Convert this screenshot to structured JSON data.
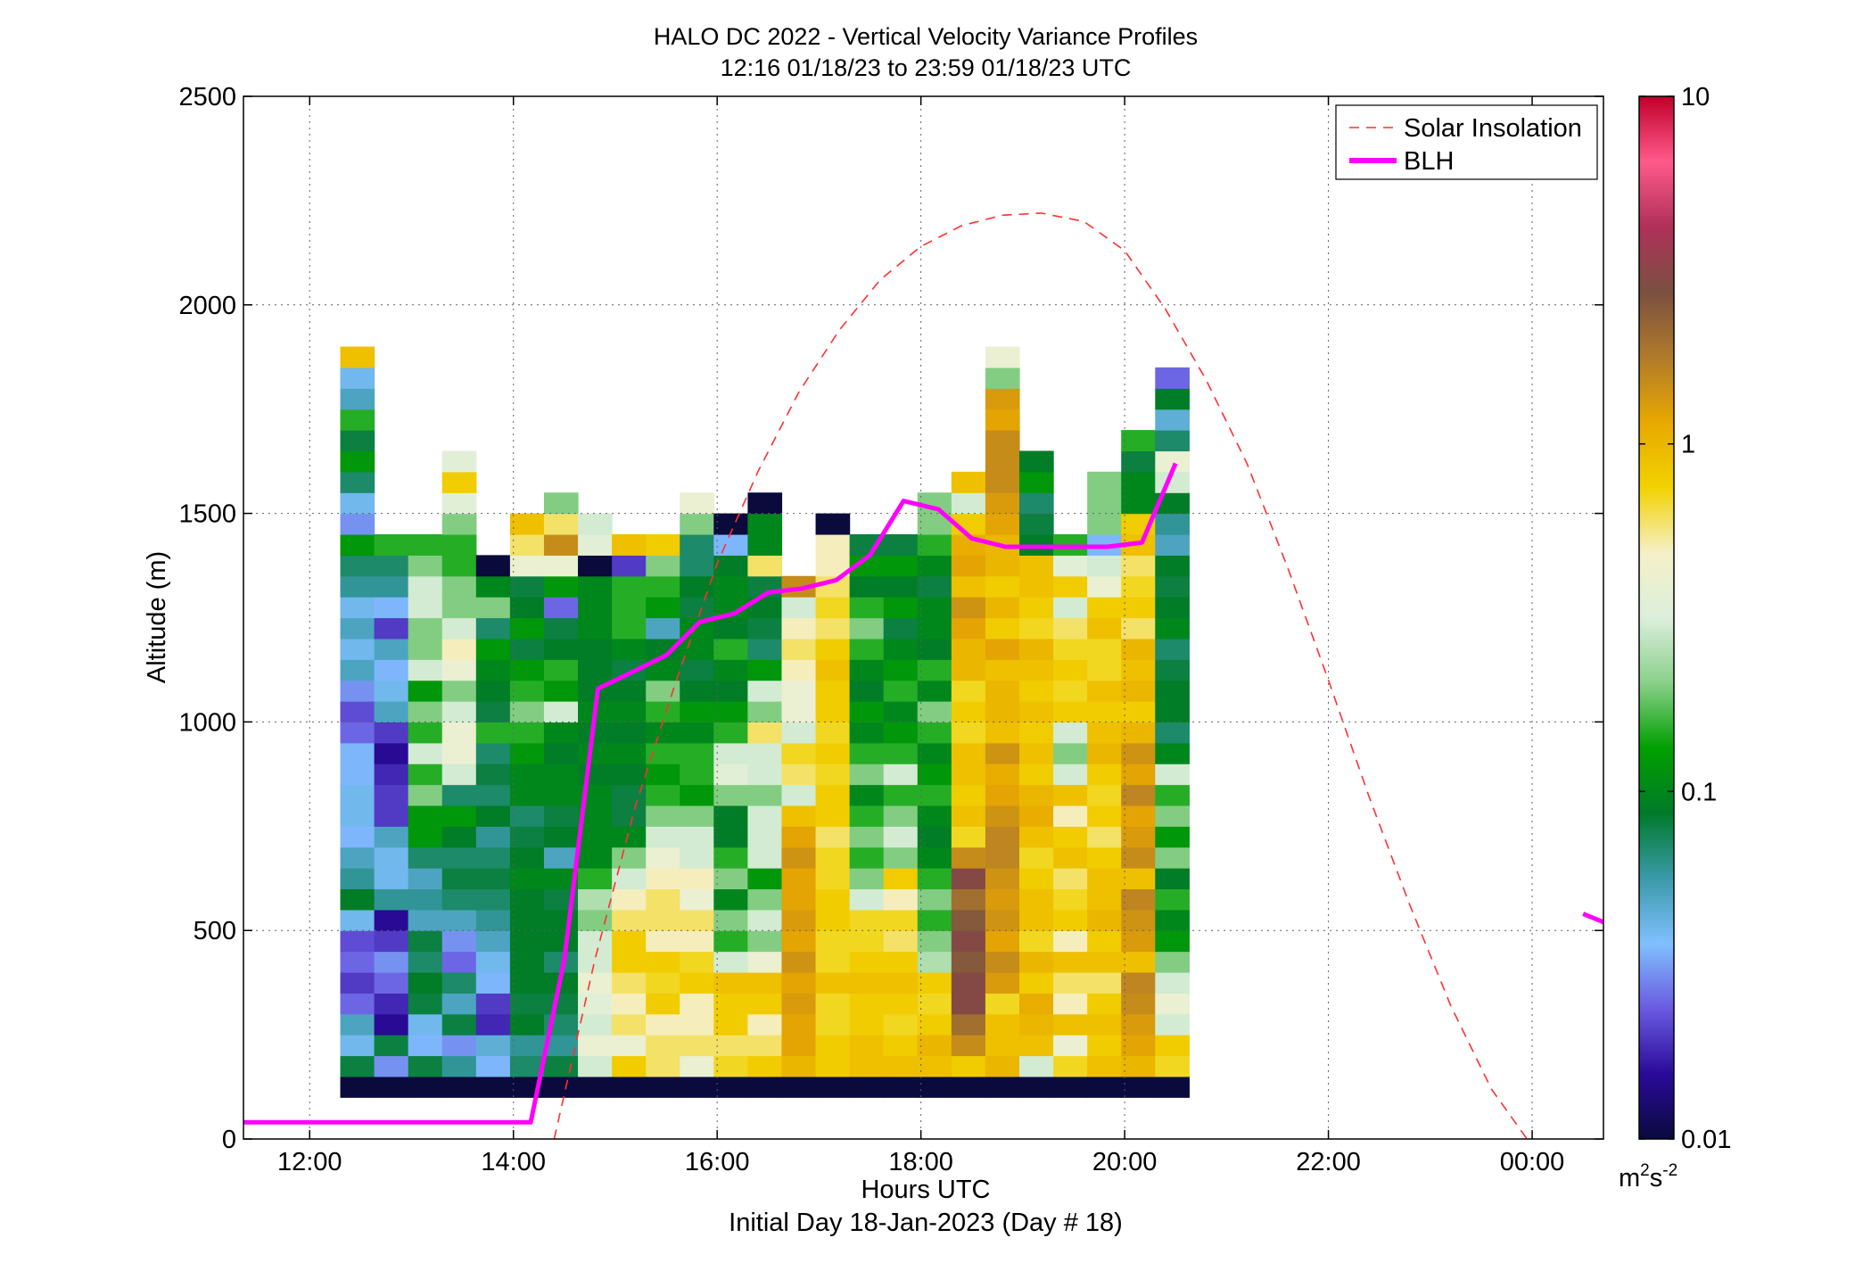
{
  "chart_data": {
    "type": "heatmap",
    "title": "HALO DC 2022 - Vertical Velocity Variance Profiles",
    "subtitle": "12:16 01/18/23 to 23:59 01/18/23  UTC",
    "xlabel": "Hours UTC",
    "xlabel2": "Initial Day 18-Jan-2023 (Day # 18)",
    "ylabel": "Altitude (m)",
    "x_unit": "hours UTC",
    "xlim": [
      11.35,
      24.7
    ],
    "ylim": [
      0,
      2500
    ],
    "x_ticks": [
      12,
      14,
      16,
      18,
      20,
      22,
      24
    ],
    "x_tick_labels": [
      "12:00",
      "14:00",
      "16:00",
      "18:00",
      "20:00",
      "22:00",
      "00:00"
    ],
    "y_ticks": [
      0,
      500,
      1000,
      1500,
      2000,
      2500
    ],
    "y_tick_labels": [
      "0",
      "500",
      "1000",
      "1500",
      "2000",
      "2500"
    ],
    "grid": true,
    "legend_position": "top-right",
    "colorbar": {
      "scale": "log",
      "range": [
        0.01,
        10
      ],
      "ticks": [
        0.01,
        0.1,
        1,
        10
      ],
      "tick_labels": [
        "0.01",
        "0.1",
        "1",
        "10"
      ],
      "unit_base": "m",
      "unit_exp1": "2",
      "unit_mid": "s",
      "unit_exp2": "-2",
      "colors": [
        "#0a0a3c",
        "#2a0a9a",
        "#6a5ae0",
        "#80c0ff",
        "#3a9aaa",
        "#007a2a",
        "#00a000",
        "#8ad08a",
        "#dcefdc",
        "#f5f0c8",
        "#f2d200",
        "#e8a800",
        "#b07a2a",
        "#7a5040",
        "#b0305a",
        "#ff5a8a",
        "#c0002a"
      ]
    },
    "heatmap": {
      "x_start": 12.3,
      "x_step": 0.3333,
      "y_start": 100,
      "y_step": 50,
      "columns": [
        [
          0.01,
          0.08,
          0.04,
          0.05,
          0.025,
          0.02,
          0.025,
          0.022,
          0.04,
          0.09,
          0.06,
          0.05,
          0.035,
          0.04,
          0.04,
          0.035,
          0.035,
          0.025,
          0.022,
          0.03,
          0.05,
          0.04,
          0.05,
          0.04,
          0.06,
          0.07,
          0.12,
          0.03,
          0.04,
          0.07,
          0.12,
          0.08,
          0.15,
          0.05,
          0.04,
          0.9
        ],
        [
          0.01,
          0.03,
          0.08,
          0.015,
          0.018,
          0.025,
          0.03,
          0.02,
          0.015,
          0.06,
          0.04,
          0.04,
          0.05,
          0.02,
          0.02,
          0.018,
          0.015,
          0.02,
          0.05,
          0.04,
          0.035,
          0.05,
          0.02,
          0.035,
          0.06,
          0.07,
          0.15
        ],
        [
          0.01,
          0.08,
          0.035,
          0.04,
          0.08,
          0.09,
          0.07,
          0.08,
          0.05,
          0.06,
          0.05,
          0.07,
          0.12,
          0.12,
          0.2,
          0.15,
          0.3,
          0.15,
          0.2,
          0.12,
          0.3,
          0.2,
          0.2,
          0.3,
          0.3,
          0.2,
          0.15
        ],
        [
          0.01,
          0.06,
          0.03,
          0.08,
          0.05,
          0.07,
          0.025,
          0.03,
          0.05,
          0.07,
          0.08,
          0.07,
          0.09,
          0.12,
          0.07,
          0.3,
          0.4,
          0.4,
          0.3,
          0.2,
          0.4,
          0.5,
          0.3,
          0.2,
          0.2,
          0.15,
          0.15,
          0.2,
          0.35,
          0.8,
          0.35
        ],
        [
          0.01,
          0.035,
          0.045,
          0.018,
          0.02,
          0.035,
          0.04,
          0.05,
          0.06,
          0.07,
          0.08,
          0.07,
          0.06,
          0.09,
          0.07,
          0.08,
          0.07,
          0.15,
          0.08,
          0.09,
          0.1,
          0.12,
          0.07,
          0.2,
          0.1,
          0.01
        ],
        [
          0.01,
          0.07,
          0.06,
          0.09,
          0.08,
          0.09,
          0.09,
          0.09,
          0.09,
          0.09,
          0.1,
          0.09,
          0.08,
          0.07,
          0.1,
          0.1,
          0.12,
          0.15,
          0.2,
          0.15,
          0.12,
          0.08,
          0.12,
          0.09,
          0.08,
          0.4,
          0.6,
          0.9
        ],
        [
          0.01,
          0.08,
          0.06,
          0.07,
          0.08,
          0.09,
          0.07,
          0.09,
          0.09,
          0.08,
          0.1,
          0.05,
          0.09,
          0.08,
          0.1,
          0.1,
          0.09,
          0.1,
          0.3,
          0.12,
          0.15,
          0.09,
          0.08,
          0.025,
          0.12,
          0.4,
          1.5,
          0.6,
          0.2
        ],
        [
          0.01,
          0.3,
          0.4,
          0.3,
          0.35,
          0.4,
          0.3,
          0.3,
          0.2,
          0.25,
          0.15,
          0.1,
          0.1,
          0.1,
          0.1,
          0.09,
          0.1,
          0.09,
          0.1,
          0.09,
          0.09,
          0.09,
          0.1,
          0.1,
          0.1,
          0.01,
          0.35,
          0.3
        ],
        [
          0.01,
          0.8,
          0.4,
          0.6,
          0.5,
          0.6,
          0.8,
          0.8,
          0.6,
          0.5,
          0.3,
          0.2,
          0.1,
          0.08,
          0.08,
          0.09,
          0.1,
          0.09,
          0.1,
          0.09,
          0.08,
          0.1,
          0.15,
          0.15,
          0.15,
          0.02,
          0.9
        ],
        [
          0.01,
          0.6,
          0.6,
          0.5,
          0.8,
          0.7,
          0.8,
          0.5,
          0.6,
          0.6,
          0.5,
          0.4,
          0.3,
          0.2,
          0.15,
          0.12,
          0.15,
          0.1,
          0.15,
          0.2,
          0.1,
          0.09,
          0.05,
          0.12,
          0.15,
          0.2,
          0.8
        ],
        [
          0.01,
          0.4,
          0.6,
          0.5,
          0.5,
          0.8,
          0.7,
          0.5,
          0.6,
          0.4,
          0.5,
          0.3,
          0.3,
          0.2,
          0.12,
          0.15,
          0.15,
          0.1,
          0.12,
          0.09,
          0.08,
          0.1,
          0.1,
          0.08,
          0.09,
          0.07,
          0.07,
          0.2,
          0.4
        ],
        [
          0.01,
          0.7,
          0.6,
          0.8,
          0.8,
          0.9,
          0.3,
          0.15,
          0.2,
          0.1,
          0.2,
          0.15,
          0.09,
          0.09,
          0.2,
          0.35,
          0.3,
          0.15,
          0.12,
          0.09,
          0.1,
          0.15,
          0.09,
          0.1,
          0.1,
          0.09,
          0.035,
          0.01
        ],
        [
          0.01,
          0.8,
          0.6,
          0.5,
          0.8,
          0.9,
          0.4,
          0.2,
          0.3,
          0.2,
          0.12,
          0.3,
          0.3,
          0.3,
          0.2,
          0.3,
          0.3,
          0.6,
          0.2,
          0.3,
          0.12,
          0.07,
          0.08,
          0.09,
          0.08,
          0.6,
          0.1,
          0.1,
          0.01
        ],
        [
          0.01,
          1.0,
          1.2,
          1.2,
          1.3,
          1.2,
          1.4,
          1.2,
          1.3,
          1.2,
          1.2,
          1.4,
          1.2,
          0.9,
          0.3,
          0.6,
          0.7,
          0.3,
          0.4,
          0.4,
          0.5,
          0.6,
          0.5,
          0.3,
          1.5
        ],
        [
          0.01,
          0.8,
          0.8,
          0.7,
          0.7,
          0.9,
          0.7,
          0.7,
          0.8,
          0.8,
          0.7,
          0.7,
          0.6,
          0.8,
          0.8,
          0.7,
          0.8,
          0.7,
          0.8,
          0.8,
          0.9,
          0.8,
          0.6,
          0.7,
          0.6,
          0.5,
          0.5,
          0.01
        ],
        [
          0.01,
          0.9,
          0.9,
          0.8,
          0.8,
          0.9,
          0.8,
          0.7,
          0.7,
          0.3,
          0.2,
          0.15,
          0.2,
          0.15,
          0.1,
          0.2,
          0.15,
          0.1,
          0.12,
          0.09,
          0.1,
          0.15,
          0.2,
          0.15,
          0.09,
          0.12,
          0.08
        ],
        [
          0.01,
          0.9,
          0.8,
          0.7,
          0.8,
          0.9,
          0.8,
          0.6,
          0.7,
          0.5,
          0.8,
          0.2,
          0.3,
          0.2,
          0.15,
          0.3,
          0.15,
          0.12,
          0.1,
          0.15,
          0.12,
          0.1,
          0.08,
          0.12,
          0.09,
          0.12,
          0.08
        ],
        [
          0.01,
          0.9,
          1.0,
          0.8,
          0.7,
          0.8,
          0.25,
          0.2,
          0.15,
          0.2,
          0.15,
          0.1,
          0.09,
          0.1,
          0.15,
          0.12,
          0.1,
          0.15,
          0.2,
          0.1,
          0.15,
          0.09,
          0.1,
          0.1,
          0.08,
          0.1,
          0.15,
          0.2,
          0.2
        ],
        [
          0.01,
          0.8,
          1.5,
          2.0,
          3.0,
          3.0,
          2.5,
          3.0,
          2.5,
          2.0,
          3.0,
          1.5,
          0.7,
          0.9,
          0.8,
          0.9,
          0.9,
          0.7,
          0.8,
          0.7,
          1.0,
          1.0,
          1.2,
          1.4,
          0.9,
          1.2,
          1.1,
          0.8,
          0.3,
          0.9
        ],
        [
          0.01,
          1.0,
          0.9,
          0.9,
          0.7,
          1.3,
          1.5,
          1.2,
          1.4,
          1.3,
          1.4,
          1.6,
          1.6,
          1.4,
          1.2,
          1.1,
          1.4,
          0.9,
          1.0,
          1.0,
          0.9,
          1.2,
          0.8,
          1.0,
          0.8,
          1.0,
          1.0,
          1.2,
          1.3,
          1.5,
          1.5,
          1.5,
          1.2,
          1.3,
          0.2,
          0.4
        ],
        [
          0.01,
          0.3,
          0.9,
          1.0,
          1.1,
          0.8,
          1.0,
          0.7,
          0.9,
          0.9,
          0.8,
          0.7,
          0.9,
          1.1,
          1.0,
          0.8,
          0.9,
          0.8,
          0.9,
          0.8,
          0.9,
          1.0,
          0.7,
          0.8,
          0.9,
          0.9,
          0.09,
          0.08,
          0.07,
          0.12,
          0.09
        ],
        [
          0.01,
          0.7,
          0.4,
          0.9,
          0.5,
          0.6,
          0.9,
          0.5,
          0.8,
          0.7,
          0.6,
          0.9,
          0.8,
          0.5,
          0.9,
          0.3,
          0.2,
          0.3,
          0.8,
          0.7,
          0.8,
          0.7,
          0.6,
          0.3,
          0.8,
          0.35,
          0.15
        ],
        [
          0.01,
          0.9,
          0.8,
          0.9,
          0.8,
          0.6,
          0.9,
          0.8,
          1.0,
          0.9,
          0.9,
          0.8,
          0.6,
          0.8,
          0.7,
          0.8,
          1.0,
          0.9,
          0.8,
          0.9,
          0.7,
          0.7,
          0.9,
          0.8,
          0.4,
          0.3,
          0.035,
          0.2,
          0.2,
          0.2
        ],
        [
          0.01,
          1.0,
          1.2,
          1.3,
          1.5,
          1.6,
          0.9,
          1.3,
          1.4,
          1.6,
          0.9,
          1.5,
          1.3,
          1.2,
          1.6,
          1.2,
          1.4,
          1.0,
          0.8,
          1.0,
          0.9,
          1.0,
          0.6,
          0.8,
          0.7,
          0.6,
          0.9,
          0.8,
          0.1,
          0.1,
          0.08,
          0.15
        ],
        [
          0.01,
          0.7,
          0.8,
          0.3,
          0.4,
          0.3,
          0.2,
          0.12,
          0.1,
          0.15,
          0.09,
          0.2,
          0.12,
          0.2,
          0.15,
          0.3,
          0.1,
          0.07,
          0.09,
          0.09,
          0.08,
          0.07,
          0.1,
          0.09,
          0.08,
          0.09,
          0.05,
          0.06,
          0.09,
          0.3,
          0.4,
          0.07,
          0.045,
          0.09,
          0.025
        ]
      ]
    },
    "series": [
      {
        "name": "Solar Insolation",
        "style": "dashed",
        "color": "#ff3030",
        "x": [
          14.4,
          14.8,
          15.2,
          15.6,
          16.0,
          16.4,
          16.8,
          17.2,
          17.6,
          18.0,
          18.4,
          18.8,
          19.18,
          19.6,
          20.0,
          20.4,
          20.8,
          21.2,
          21.6,
          22.0,
          22.4,
          22.8,
          23.2,
          23.6,
          23.95
        ],
        "y": [
          0,
          430,
          800,
          1100,
          1380,
          1600,
          1790,
          1940,
          2060,
          2140,
          2190,
          2215,
          2220,
          2200,
          2130,
          1990,
          1820,
          1620,
          1370,
          1100,
          820,
          560,
          320,
          120,
          0
        ]
      },
      {
        "name": "BLH",
        "style": "solid",
        "color": "#ff00ff",
        "x": [
          11.35,
          14.17,
          14.5,
          14.83,
          15.17,
          15.5,
          15.83,
          16.17,
          16.5,
          16.83,
          17.17,
          17.5,
          17.83,
          18.17,
          18.5,
          18.83,
          19.17,
          19.5,
          19.83,
          20.17,
          20.5
        ],
        "y": [
          40,
          40,
          430,
          1080,
          1120,
          1160,
          1240,
          1260,
          1310,
          1320,
          1340,
          1400,
          1530,
          1510,
          1440,
          1420,
          1420,
          1420,
          1420,
          1430,
          1620
        ]
      },
      {
        "style": "solid",
        "color": "#ff00ff",
        "x": [
          24.5,
          24.7
        ],
        "y": [
          540,
          520
        ]
      }
    ]
  }
}
